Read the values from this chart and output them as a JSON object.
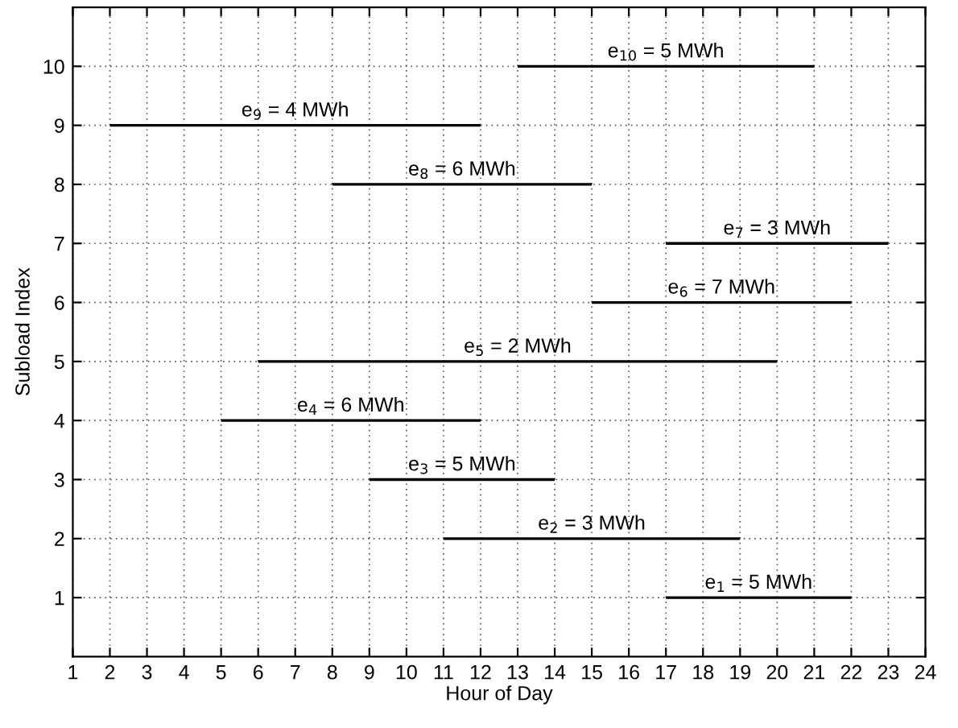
{
  "chart_data": {
    "type": "bar",
    "orientation": "horizontal",
    "xlabel": "Hour of Day",
    "ylabel": "Subload Index",
    "categories": [
      "10",
      "9",
      "8",
      "7",
      "6",
      "5",
      "4",
      "3",
      "2",
      "1"
    ],
    "base": [
      13,
      2,
      8,
      17,
      15,
      6,
      5,
      9,
      11,
      17
    ],
    "values": [
      8,
      10,
      7,
      6,
      7,
      14,
      7,
      5,
      8,
      5
    ],
    "color": "#000000",
    "xlim": [
      1,
      24
    ],
    "xticks": [
      1,
      2,
      3,
      4,
      5,
      6,
      7,
      8,
      9,
      10,
      11,
      12,
      13,
      14,
      15,
      16,
      17,
      18,
      19,
      20,
      21,
      22,
      23,
      24
    ],
    "grid": true,
    "annotations": [
      {
        "text": "e$_{10}$ = 5 MWh",
        "x": 17,
        "y": "10"
      },
      {
        "text": "e$_{9}$ = 4 MWh",
        "x": 7,
        "y": "9"
      },
      {
        "text": "e$_{8}$ = 6 MWh",
        "x": 11.5,
        "y": "8"
      },
      {
        "text": "e$_{7}$ = 3 MWh",
        "x": 20,
        "y": "7"
      },
      {
        "text": "e$_{6}$ = 7 MWh",
        "x": 18.5,
        "y": "6"
      },
      {
        "text": "e$_{5}$ = 2 MWh",
        "x": 13,
        "y": "5"
      },
      {
        "text": "e$_{4}$ = 6 MWh",
        "x": 8.5,
        "y": "4"
      },
      {
        "text": "e$_{3}$ = 5 MWh",
        "x": 11.5,
        "y": "3"
      },
      {
        "text": "e$_{2}$ = 3 MWh",
        "x": 15,
        "y": "2"
      },
      {
        "text": "e$_{1}$ = 5 MWh",
        "x": 19.5,
        "y": "1"
      }
    ]
  }
}
